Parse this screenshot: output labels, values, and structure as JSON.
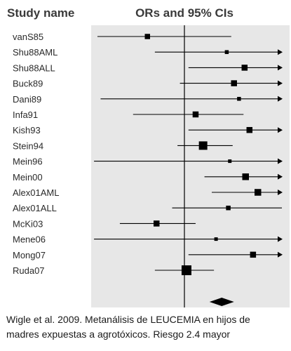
{
  "header": {
    "study_col": "Study name",
    "effect_col": "ORs and 95% CIs"
  },
  "caption": {
    "line1": "Wigle et al. 2009. Metanálisis de LEUCEMIA en hijos de",
    "line2": "madres expuestas a agrotóxicos. Riesgo 2.4 mayor"
  },
  "colors": {
    "plot_bg": "#e7e7e7",
    "ink": "#000000"
  },
  "chart_data": {
    "type": "forest",
    "scale": "log",
    "xlim": [
      0.1,
      10
    ],
    "null_line": 1,
    "studies": [
      {
        "name": "vanS85",
        "or": 0.42,
        "lo": 0.13,
        "hi": 3.0,
        "weight": 0.35
      },
      {
        "name": "Shu88AML",
        "or": 2.7,
        "lo": 0.5,
        "hi": 10,
        "weight": 0.15,
        "arrow": true
      },
      {
        "name": "Shu88ALL",
        "or": 4.1,
        "lo": 1.1,
        "hi": 10,
        "weight": 0.45,
        "arrow": true
      },
      {
        "name": "Buck89",
        "or": 3.2,
        "lo": 0.9,
        "hi": 10,
        "weight": 0.45,
        "arrow": true
      },
      {
        "name": "Dani89",
        "or": 3.6,
        "lo": 0.14,
        "hi": 10,
        "weight": 0.15,
        "arrow": true
      },
      {
        "name": "Infa91",
        "or": 1.3,
        "lo": 0.3,
        "hi": 4.0,
        "weight": 0.45
      },
      {
        "name": "Kish93",
        "or": 4.6,
        "lo": 1.1,
        "hi": 10,
        "weight": 0.45,
        "arrow": true
      },
      {
        "name": "Stein94",
        "or": 1.55,
        "lo": 0.85,
        "hi": 3.1,
        "weight": 0.8
      },
      {
        "name": "Mein96",
        "or": 2.9,
        "lo": 0.12,
        "hi": 10,
        "weight": 0.1,
        "arrow": true
      },
      {
        "name": "Mein00",
        "or": 4.2,
        "lo": 1.6,
        "hi": 10,
        "weight": 0.55,
        "arrow": true
      },
      {
        "name": "Alex01AML",
        "or": 5.6,
        "lo": 1.9,
        "hi": 10,
        "weight": 0.55,
        "arrow": true
      },
      {
        "name": "Alex01ALL",
        "or": 2.8,
        "lo": 0.75,
        "hi": 10,
        "weight": 0.25
      },
      {
        "name": "McKi03",
        "or": 0.52,
        "lo": 0.22,
        "hi": 1.3,
        "weight": 0.45
      },
      {
        "name": "Mene06",
        "or": 2.1,
        "lo": 0.12,
        "hi": 10,
        "weight": 0.1,
        "arrow": true
      },
      {
        "name": "Mong07",
        "or": 5.0,
        "lo": 1.1,
        "hi": 10,
        "weight": 0.45,
        "arrow": true
      },
      {
        "name": "Ruda07",
        "or": 1.05,
        "lo": 0.5,
        "hi": 2.0,
        "weight": 1.0
      }
    ],
    "summary": {
      "or": 2.4,
      "lo": 1.8,
      "hi": 3.2
    }
  }
}
